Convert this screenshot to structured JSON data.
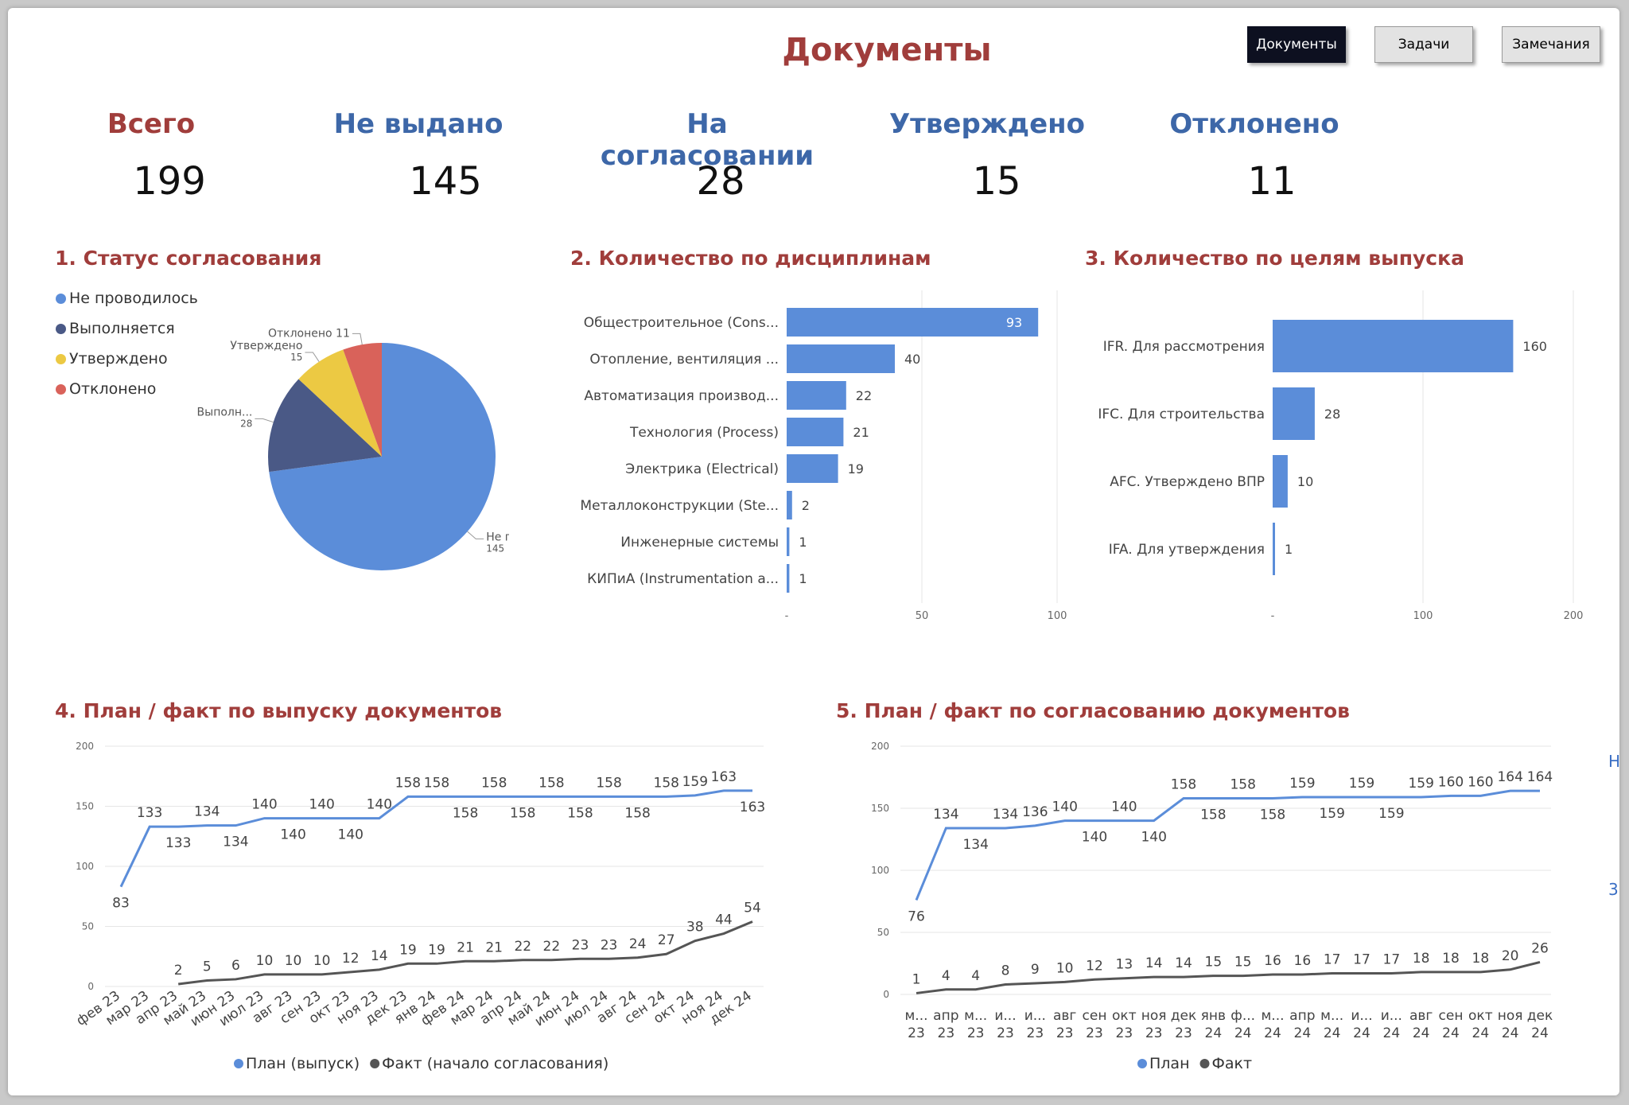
{
  "header": {
    "title": "Документы",
    "nav": [
      {
        "label": "Документы",
        "active": true
      },
      {
        "label": "Задачи",
        "active": false
      },
      {
        "label": "Замечания",
        "active": false
      }
    ]
  },
  "kpis": [
    {
      "label": "Всего",
      "value": "199",
      "color": "#a03d3b"
    },
    {
      "label": "Не выдано",
      "value": "145",
      "color": "#3d67a8"
    },
    {
      "label": "На согласовании",
      "value": "28",
      "color": "#3d67a8"
    },
    {
      "label": "Утверждено",
      "value": "15",
      "color": "#3d67a8"
    },
    {
      "label": "Отклонено",
      "value": "11",
      "color": "#3d67a8"
    }
  ],
  "sections": {
    "status": "1. Статус согласования",
    "disciplines": "2. Количество по дисциплинам",
    "purposes": "3. Количество по целям выпуска",
    "release_plan": "4. План / факт по выпуску документов",
    "approval_plan": "5. План / факт по согласованию документов"
  },
  "edge_fragments": [
    "Н",
    "3"
  ],
  "chart_data": [
    {
      "id": "status",
      "type": "pie",
      "labels": [
        "Не проводилось",
        "Выполняется",
        "Утверждено",
        "Отклонено"
      ],
      "values": [
        145,
        28,
        15,
        11
      ],
      "slice_labels": [
        {
          "name": "Не проводилось",
          "value": "145"
        },
        {
          "name": "Выполн...",
          "value": "28"
        },
        {
          "name": "Утверждено",
          "value": "15"
        },
        {
          "name": "Отклонено",
          "value": "11"
        }
      ],
      "colors": [
        "#5b8dd9",
        "#4a5986",
        "#ecc943",
        "#d9625a"
      ],
      "legend": "left"
    },
    {
      "id": "disciplines",
      "type": "bar",
      "orientation": "horizontal",
      "categories": [
        "Общестроительное (Cons...",
        "Отопление, вентиляция ...",
        "Автоматизация производ...",
        "Технология (Process)",
        "Электрика (Electrical)",
        "Металлоконструкции (Ste...",
        "Инженерные системы",
        "КИПиА (Instrumentation a..."
      ],
      "values": [
        93,
        40,
        22,
        21,
        19,
        2,
        1,
        1
      ],
      "xlim": [
        0,
        100
      ],
      "ticks": [
        "-",
        "50",
        "100"
      ],
      "color": "#5b8dd9",
      "grid": true
    },
    {
      "id": "purposes",
      "type": "bar",
      "orientation": "horizontal",
      "categories": [
        "IFR. Для рассмотрения",
        "IFC. Для строительства",
        "AFC. Утверждено ВПР",
        "IFA. Для утверждения"
      ],
      "values": [
        160,
        28,
        10,
        1
      ],
      "xlim": [
        0,
        200
      ],
      "ticks": [
        "-",
        "100",
        "200"
      ],
      "color": "#5b8dd9",
      "grid": true
    },
    {
      "id": "release_plan",
      "type": "line",
      "x": [
        "фев 23",
        "мар 23",
        "апр 23",
        "май 23",
        "июн 23",
        "июл 23",
        "авг 23",
        "сен 23",
        "окт 23",
        "ноя 23",
        "дек 23",
        "янв 24",
        "фев 24",
        "мар 24",
        "апр 24",
        "май 24",
        "июн 24",
        "июл 24",
        "авг 24",
        "сен 24",
        "окт 24",
        "ноя 24",
        "дек 24"
      ],
      "series": [
        {
          "name": "План (выпуск)",
          "color": "#5b8dd9",
          "values": [
            83,
            133,
            133,
            134,
            134,
            140,
            140,
            140,
            140,
            140,
            158,
            158,
            158,
            158,
            158,
            158,
            158,
            158,
            158,
            158,
            159,
            163,
            163
          ]
        },
        {
          "name": "Факт (начало согласования)",
          "color": "#555555",
          "values": [
            null,
            null,
            2,
            5,
            6,
            10,
            10,
            10,
            12,
            14,
            19,
            19,
            21,
            21,
            22,
            22,
            23,
            23,
            24,
            27,
            38,
            44,
            54
          ]
        }
      ],
      "ylim": [
        0,
        200
      ],
      "yticks": [
        0,
        50,
        100,
        150,
        200
      ],
      "grid": true,
      "legend": "bottom"
    },
    {
      "id": "approval_plan",
      "type": "line",
      "x": [
        "м...\n23",
        "апр\n23",
        "м...\n23",
        "и...\n23",
        "и...\n23",
        "авг\n23",
        "сен\n23",
        "окт\n23",
        "ноя\n23",
        "дек\n23",
        "янв\n24",
        "ф...\n24",
        "м...\n24",
        "апр\n24",
        "м...\n24",
        "и...\n24",
        "и...\n24",
        "авг\n24",
        "сен\n24",
        "окт\n24",
        "ноя\n24",
        "дек\n24"
      ],
      "series": [
        {
          "name": "План",
          "color": "#5b8dd9",
          "values": [
            76,
            134,
            134,
            134,
            136,
            140,
            140,
            140,
            140,
            158,
            158,
            158,
            158,
            159,
            159,
            159,
            159,
            159,
            160,
            160,
            164,
            164
          ]
        },
        {
          "name": "Факт",
          "color": "#555555",
          "values": [
            1,
            4,
            4,
            8,
            9,
            10,
            12,
            13,
            14,
            14,
            15,
            15,
            16,
            16,
            17,
            17,
            17,
            18,
            18,
            18,
            20,
            26
          ]
        }
      ],
      "ylim": [
        0,
        200
      ],
      "yticks": [
        0,
        50,
        100,
        150,
        200
      ],
      "grid": true,
      "legend": "bottom"
    }
  ]
}
